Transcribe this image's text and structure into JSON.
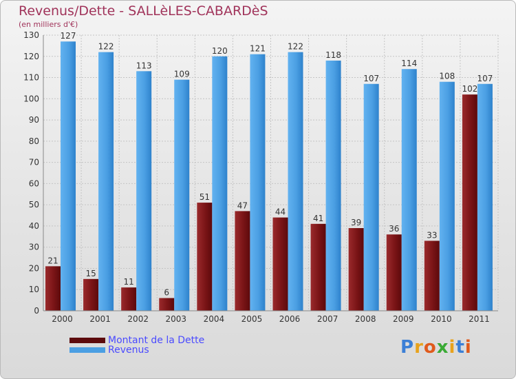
{
  "title": "Revenus/Dette - SALLèLES-CABARDèS",
  "subtitle": "(en milliers d'€)",
  "logo_text": "Proxiti",
  "colors": {
    "title": "#a0335a",
    "debt": "#7a1416",
    "revenue": "#4b9fe3",
    "legend_text": "#4a4aff"
  },
  "legend": [
    {
      "label": "Montant de la Dette",
      "color": "#5c0a0c"
    },
    {
      "label": "Revenus",
      "color": "#4b9fe3"
    }
  ],
  "chart_data": {
    "type": "bar",
    "title": "Revenus/Dette - SALLèLES-CABARDèS",
    "ylabel": "(en milliers d'€)",
    "xlabel": "",
    "categories": [
      "2000",
      "2001",
      "2002",
      "2003",
      "2004",
      "2005",
      "2006",
      "2007",
      "2008",
      "2009",
      "2010",
      "2011"
    ],
    "series": [
      {
        "name": "Montant de la Dette",
        "values": [
          21,
          15,
          11,
          6,
          51,
          47,
          44,
          41,
          39,
          36,
          33,
          102
        ]
      },
      {
        "name": "Revenus",
        "values": [
          127,
          122,
          113,
          109,
          120,
          121,
          122,
          118,
          107,
          114,
          108,
          107
        ]
      }
    ],
    "ylim": [
      0,
      130
    ],
    "yticks": [
      0,
      10,
      20,
      30,
      40,
      50,
      60,
      70,
      80,
      90,
      100,
      110,
      120,
      130
    ],
    "grid": true,
    "legend_position": "bottom-left"
  }
}
